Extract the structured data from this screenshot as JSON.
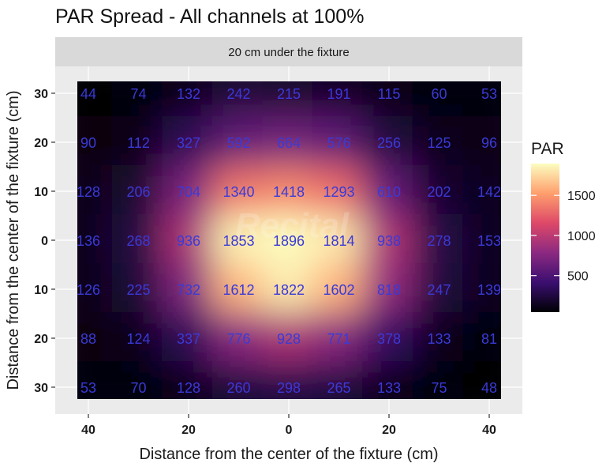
{
  "chart_data": {
    "type": "heatmap",
    "title": "PAR Spread - All channels at 100%",
    "facet_label": "20 cm under the fixture",
    "xlabel": "Distance from the center of the fixture (cm)",
    "ylabel": "Distance from the center of the fixture (cm)",
    "x": [
      -40,
      -30,
      -20,
      -10,
      0,
      10,
      20,
      30,
      40
    ],
    "y": [
      30,
      20,
      10,
      0,
      -10,
      -20,
      -30
    ],
    "x_ticks": [
      -40,
      -20,
      0,
      20,
      40
    ],
    "x_tick_labels": [
      "40",
      "20",
      "0",
      "20",
      "40"
    ],
    "y_ticks": [
      30,
      20,
      10,
      0,
      -10,
      -20,
      -30
    ],
    "y_tick_labels": [
      "30",
      "20",
      "10",
      "0",
      "10",
      "20",
      "30"
    ],
    "values": [
      [
        44,
        74,
        132,
        242,
        215,
        191,
        115,
        60,
        53
      ],
      [
        90,
        112,
        327,
        592,
        664,
        576,
        256,
        125,
        96
      ],
      [
        128,
        206,
        704,
        1340,
        1418,
        1293,
        610,
        202,
        142
      ],
      [
        136,
        268,
        936,
        1853,
        1896,
        1814,
        938,
        278,
        153
      ],
      [
        126,
        225,
        732,
        1612,
        1822,
        1602,
        818,
        247,
        139
      ],
      [
        88,
        124,
        337,
        776,
        928,
        771,
        378,
        133,
        81
      ],
      [
        53,
        70,
        128,
        260,
        298,
        265,
        133,
        75,
        48
      ]
    ],
    "legend": {
      "title": "PAR",
      "ticks": [
        500,
        1000,
        1500
      ],
      "tick_labels": [
        "500",
        "1000",
        "1500"
      ],
      "range": [
        44,
        1896
      ],
      "placement": "right"
    },
    "colormap": [
      "#000004",
      "#3b0f70",
      "#8c2981",
      "#de4968",
      "#fe9f6d",
      "#fcfdbf"
    ],
    "panel_background": "#ebebeb",
    "strip_background": "#d9d9d9",
    "label_color": "#3a3ad8",
    "grid": true
  },
  "watermark": "Recital"
}
